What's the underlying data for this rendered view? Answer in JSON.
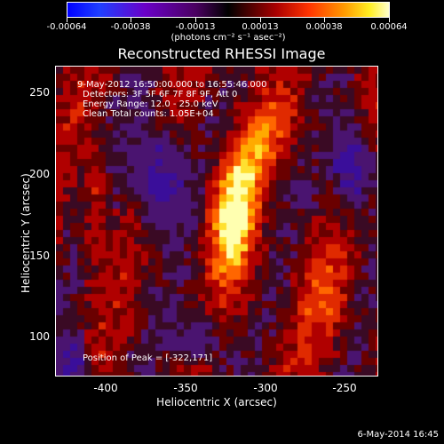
{
  "colorbar": {
    "tick_labels": [
      "-0.00064",
      "-0.00038",
      "-0.00013",
      "0.00013",
      "0.00038",
      "0.00064"
    ],
    "units": "(photons cm⁻² s⁻¹ asec⁻²)"
  },
  "image": {
    "title": "Reconstructed RHESSI Image",
    "time_range": "9-May-2012 16:50:00.000 to 16:55:46.000",
    "detectors": "Detectors: 3F 5F 6F 7F 8F 9F, Att 0",
    "energy_range": "Energy Range: 12.0 - 25.0 keV",
    "clean_counts": "Clean     Total counts: 1.05E+04",
    "peak_position": "Position of Peak = [-322,171]",
    "xlabel": "Heliocentric X (arcsec)",
    "ylabel": "Heliocentric Y (arcsec)",
    "x_ticks": [
      "-400",
      "-350",
      "-300",
      "-250"
    ],
    "y_ticks": [
      "250",
      "200",
      "150",
      "100"
    ],
    "footer_date": "6-May-2014 16:45"
  }
}
